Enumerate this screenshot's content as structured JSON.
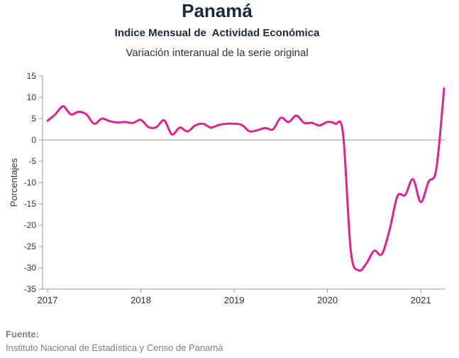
{
  "chart_data": {
    "type": "line",
    "title": "Panamá",
    "subtitle": "Indice Mensual de  Actividad Económica",
    "subtitle2": "Variación interanual de la serie original",
    "ylabel": "Porcentajes",
    "xlabel": "",
    "ylim": [
      -35,
      15
    ],
    "yticks": [
      15,
      10,
      5,
      0,
      -5,
      -10,
      -15,
      -20,
      -25,
      -30,
      -35
    ],
    "xlim": [
      "2017-01",
      "2021-04"
    ],
    "xticks": [
      "2017",
      "2018",
      "2019",
      "2020",
      "2021"
    ],
    "grid": false,
    "series": [
      {
        "name": "",
        "color": "#e0228f",
        "x": [
          "2017-01",
          "2017-02",
          "2017-03",
          "2017-04",
          "2017-05",
          "2017-06",
          "2017-07",
          "2017-08",
          "2017-09",
          "2017-10",
          "2017-11",
          "2017-12",
          "2018-01",
          "2018-02",
          "2018-03",
          "2018-04",
          "2018-05",
          "2018-06",
          "2018-07",
          "2018-08",
          "2018-09",
          "2018-10",
          "2018-11",
          "2018-12",
          "2019-01",
          "2019-02",
          "2019-03",
          "2019-04",
          "2019-05",
          "2019-06",
          "2019-07",
          "2019-08",
          "2019-09",
          "2019-10",
          "2019-11",
          "2019-12",
          "2020-01",
          "2020-02",
          "2020-03",
          "2020-04",
          "2020-05",
          "2020-06",
          "2020-07",
          "2020-08",
          "2020-09",
          "2020-10",
          "2020-11",
          "2020-12",
          "2021-01",
          "2021-02",
          "2021-03",
          "2021-04"
        ],
        "values": [
          4.5,
          6.0,
          7.9,
          6.0,
          6.6,
          6.0,
          3.8,
          5.0,
          4.4,
          4.1,
          4.2,
          4.0,
          4.7,
          3.0,
          3.0,
          4.6,
          1.3,
          2.9,
          2.0,
          3.4,
          3.8,
          2.9,
          3.5,
          3.8,
          3.8,
          3.5,
          2.0,
          2.3,
          2.8,
          2.5,
          5.2,
          4.2,
          5.7,
          4.0,
          4.0,
          3.4,
          4.2,
          3.8,
          1.5,
          -26.0,
          -30.6,
          -29.0,
          -26.0,
          -26.8,
          -21.0,
          -13.2,
          -12.9,
          -9.2,
          -14.6,
          -9.8,
          -6.8,
          12.1
        ]
      }
    ]
  },
  "footer": {
    "label": "Fuente:",
    "text": "Instituto Nacional de Estadística y Censo de Panamá"
  }
}
